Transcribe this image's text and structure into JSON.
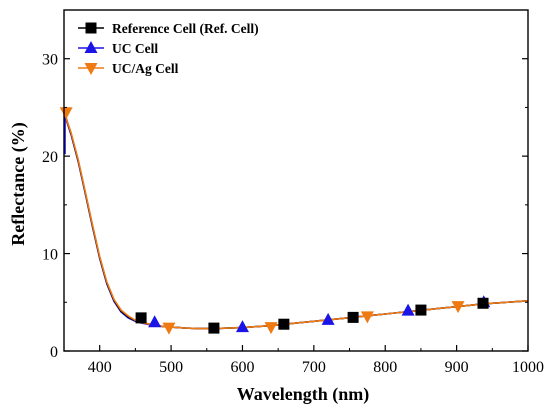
{
  "chart_data": {
    "type": "line",
    "xlabel": "Wavelength (nm)",
    "ylabel": "Reflectance (%)",
    "xlim": [
      350,
      1000
    ],
    "ylim": [
      0,
      35
    ],
    "xticks": [
      400,
      500,
      600,
      700,
      800,
      900,
      1000
    ],
    "yticks": [
      0,
      10,
      20,
      30
    ],
    "grid": false,
    "legend_position": "top-left",
    "series": [
      {
        "name": "Reference Cell (Ref. Cell)",
        "color": "#000000",
        "marker": "square",
        "x": [
          350,
          360,
          370,
          380,
          390,
          400,
          410,
          420,
          430,
          440,
          450,
          460,
          470,
          480,
          490,
          500,
          520,
          540,
          560,
          580,
          600,
          620,
          640,
          660,
          680,
          700,
          720,
          740,
          760,
          780,
          800,
          820,
          840,
          860,
          880,
          900,
          920,
          940,
          960,
          980,
          1000
        ],
        "values": [
          24.6,
          22.3,
          19.5,
          16.2,
          12.8,
          9.6,
          7.0,
          5.2,
          4.1,
          3.5,
          3.1,
          2.9,
          2.75,
          2.6,
          2.5,
          2.45,
          2.35,
          2.3,
          2.3,
          2.35,
          2.4,
          2.5,
          2.6,
          2.75,
          2.9,
          3.05,
          3.2,
          3.35,
          3.5,
          3.65,
          3.8,
          3.95,
          4.1,
          4.25,
          4.4,
          4.55,
          4.7,
          4.85,
          4.95,
          5.05,
          5.15
        ],
        "marker_x": [
          458,
          560,
          658,
          755,
          850,
          937
        ],
        "marker_values": [
          3.4,
          2.35,
          2.75,
          3.45,
          4.2,
          4.9
        ]
      },
      {
        "name": "UC Cell",
        "color": "#1a14e6",
        "marker": "triangle-up",
        "x": [
          350,
          360,
          370,
          380,
          390,
          400,
          410,
          420,
          430,
          440,
          450,
          460,
          470,
          480,
          490,
          500,
          520,
          540,
          560,
          580,
          600,
          620,
          640,
          660,
          680,
          700,
          720,
          740,
          760,
          780,
          800,
          820,
          840,
          860,
          880,
          900,
          920,
          940,
          960,
          980,
          1000
        ],
        "values": [
          24.4,
          22.2,
          19.4,
          16.1,
          12.7,
          9.5,
          6.9,
          5.1,
          4.0,
          3.4,
          3.05,
          2.85,
          2.7,
          2.6,
          2.5,
          2.45,
          2.35,
          2.3,
          2.3,
          2.35,
          2.4,
          2.5,
          2.6,
          2.75,
          2.9,
          3.05,
          3.2,
          3.35,
          3.5,
          3.65,
          3.8,
          3.95,
          4.1,
          4.25,
          4.4,
          4.55,
          4.7,
          4.85,
          4.95,
          5.05,
          5.15
        ],
        "marker_x": [
          477,
          600,
          720,
          832,
          938
        ],
        "marker_values": [
          2.95,
          2.45,
          3.2,
          4.15,
          5.0
        ]
      },
      {
        "name": "UC/Ag Cell",
        "color": "#f07a12",
        "marker": "triangle-down",
        "x": [
          350,
          360,
          370,
          380,
          390,
          400,
          410,
          420,
          430,
          440,
          450,
          460,
          470,
          480,
          490,
          500,
          520,
          540,
          560,
          580,
          600,
          620,
          640,
          660,
          680,
          700,
          720,
          740,
          760,
          780,
          800,
          820,
          840,
          860,
          880,
          900,
          920,
          940,
          960,
          980,
          1000
        ],
        "values": [
          24.5,
          22.4,
          19.6,
          16.3,
          12.9,
          9.7,
          7.1,
          5.3,
          4.2,
          3.6,
          3.15,
          2.9,
          2.75,
          2.6,
          2.5,
          2.45,
          2.35,
          2.3,
          2.3,
          2.35,
          2.4,
          2.5,
          2.6,
          2.75,
          2.9,
          3.05,
          3.2,
          3.35,
          3.5,
          3.65,
          3.8,
          3.95,
          4.1,
          4.25,
          4.4,
          4.55,
          4.7,
          4.85,
          4.95,
          5.05,
          5.15
        ],
        "marker_x": [
          353,
          497,
          640,
          775,
          902
        ],
        "marker_values": [
          24.5,
          2.4,
          2.45,
          3.55,
          4.6
        ]
      }
    ]
  }
}
